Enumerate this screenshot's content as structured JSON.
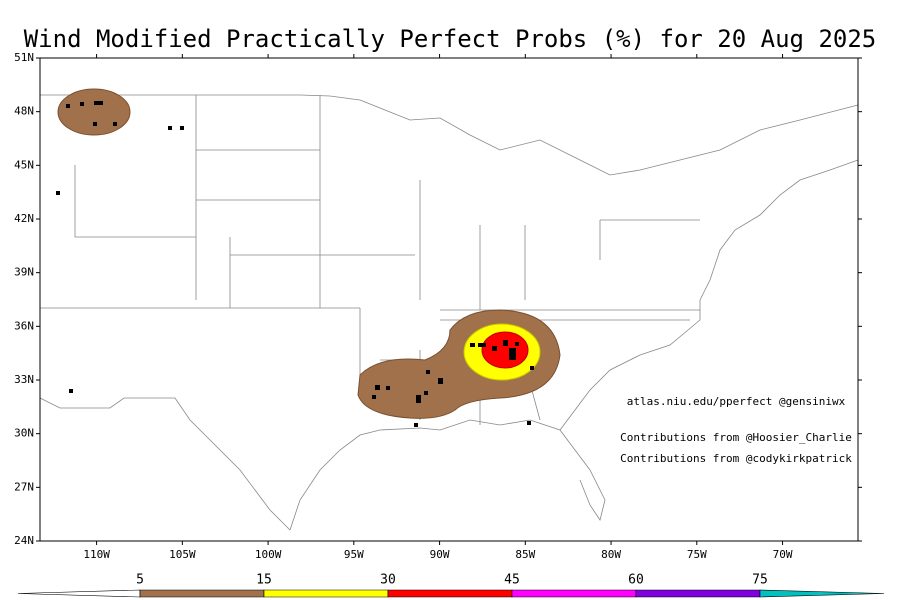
{
  "title": "Wind Modified Practically Perfect Probs (%) for 20 Aug 2025",
  "map": {
    "lat_range": [
      24,
      51
    ],
    "lon_range": [
      -113.3,
      -65.6
    ],
    "lat_ticks": [
      {
        "value": 51,
        "label": "51N"
      },
      {
        "value": 48,
        "label": "48N"
      },
      {
        "value": 45,
        "label": "45N"
      },
      {
        "value": 42,
        "label": "42N"
      },
      {
        "value": 39,
        "label": "39N"
      },
      {
        "value": 36,
        "label": "36N"
      },
      {
        "value": 33,
        "label": "33N"
      },
      {
        "value": 30,
        "label": "30N"
      },
      {
        "value": 27,
        "label": "27N"
      },
      {
        "value": 24,
        "label": "24N"
      }
    ],
    "lon_ticks": [
      {
        "value": -110,
        "label": "110W"
      },
      {
        "value": -105,
        "label": "105W"
      },
      {
        "value": -100,
        "label": "100W"
      },
      {
        "value": -95,
        "label": "95W"
      },
      {
        "value": -90,
        "label": "90W"
      },
      {
        "value": -85,
        "label": "85W"
      },
      {
        "value": -80,
        "label": "80W"
      },
      {
        "value": -75,
        "label": "75W"
      },
      {
        "value": -70,
        "label": "70W"
      }
    ]
  },
  "credits": [
    "atlas.niu.edu/pperfect @gensiniwx",
    "Contributions from @Hoosier_Charlie",
    "Contributions from @codykirkpatrick"
  ],
  "colorbar": {
    "levels": [
      5,
      15,
      30,
      45,
      60,
      75
    ],
    "colors": [
      "#ffffff",
      "#a0714a",
      "#ffff00",
      "#ff0000",
      "#ff00ff",
      "#8000e0",
      "#00c0c0"
    ]
  }
}
